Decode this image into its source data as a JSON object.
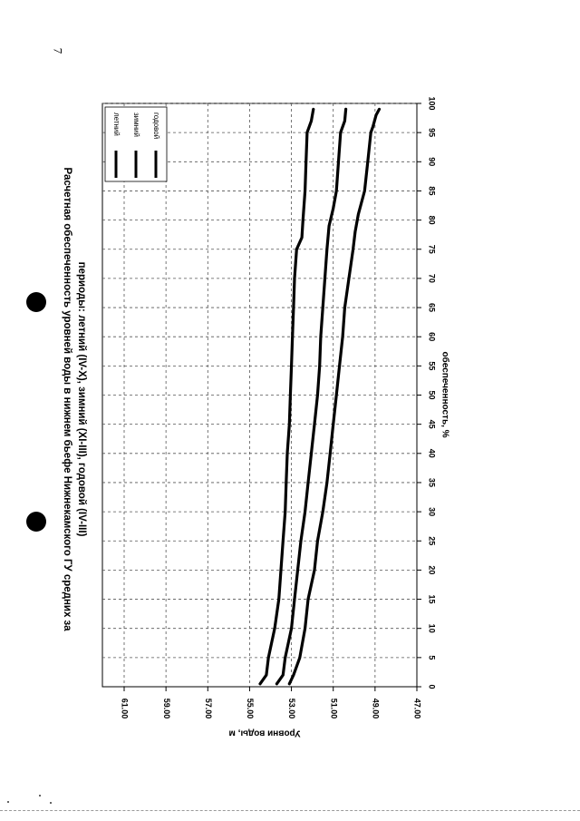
{
  "page": {
    "number": "7"
  },
  "chart_data": {
    "type": "line",
    "title": "Расчетная обеспеченность уровней воды в нижнем бьефе Нижнекамского ГУ средних за периоды: летний (IV-X), зимний (XI-III), годовой (IV-III)",
    "title_lines": [
      "Расчетная обеспеченность уровней воды в нижнем бьефе Нижнекамского ГУ средних за",
      "периоды: летний (IV-X), зимний (XI-III), годовой (IV-III)"
    ],
    "xlabel": "обеспеченность, %",
    "ylabel": "Уровни воды, м",
    "xlim": [
      0,
      100
    ],
    "ylim": [
      47,
      62
    ],
    "x_ticks": [
      "0",
      "5",
      "10",
      "15",
      "20",
      "25",
      "30",
      "35",
      "40",
      "45",
      "50",
      "55",
      "60",
      "65",
      "70",
      "75",
      "80",
      "85",
      "90",
      "95",
      "100"
    ],
    "y_ticks": [
      "47.00",
      "49.00",
      "51.00",
      "53.00",
      "55.00",
      "57.00",
      "59.00",
      "61.00"
    ],
    "grid": true,
    "legend_position": "top-right",
    "series": [
      {
        "name": "летний",
        "color": "#000000",
        "x": [
          0.5,
          2,
          5,
          10,
          15,
          20,
          25,
          30,
          35,
          40,
          45,
          50,
          55,
          60,
          65,
          70,
          75,
          77,
          80,
          85,
          90,
          95,
          97,
          99
        ],
        "y": [
          54.5,
          54.2,
          54.1,
          53.8,
          53.6,
          53.5,
          53.4,
          53.3,
          53.25,
          53.2,
          53.1,
          53.05,
          53.0,
          52.95,
          52.9,
          52.85,
          52.75,
          52.5,
          52.45,
          52.35,
          52.3,
          52.25,
          52.05,
          51.95
        ]
      },
      {
        "name": "зимний",
        "color": "#000000",
        "x": [
          0.5,
          2,
          5,
          10,
          15,
          20,
          25,
          30,
          35,
          40,
          45,
          50,
          55,
          60,
          65,
          70,
          75,
          79,
          82,
          85,
          90,
          95,
          97,
          99
        ],
        "y": [
          53.7,
          53.4,
          53.3,
          53.0,
          52.85,
          52.7,
          52.55,
          52.35,
          52.2,
          52.05,
          51.9,
          51.75,
          51.65,
          51.6,
          51.5,
          51.4,
          51.3,
          51.2,
          51.0,
          50.85,
          50.75,
          50.65,
          50.45,
          50.4
        ]
      },
      {
        "name": "годовой",
        "color": "#000000",
        "x": [
          0.5,
          2,
          5,
          10,
          15,
          20,
          25,
          30,
          35,
          40,
          45,
          50,
          55,
          60,
          65,
          70,
          75,
          78,
          81,
          85,
          90,
          95,
          96,
          98,
          99
        ],
        "y": [
          53.1,
          52.9,
          52.6,
          52.35,
          52.2,
          51.9,
          51.75,
          51.5,
          51.3,
          51.15,
          51.0,
          50.85,
          50.7,
          50.55,
          50.45,
          50.25,
          50.05,
          49.95,
          49.8,
          49.5,
          49.35,
          49.2,
          49.1,
          48.95,
          48.8
        ]
      }
    ]
  }
}
